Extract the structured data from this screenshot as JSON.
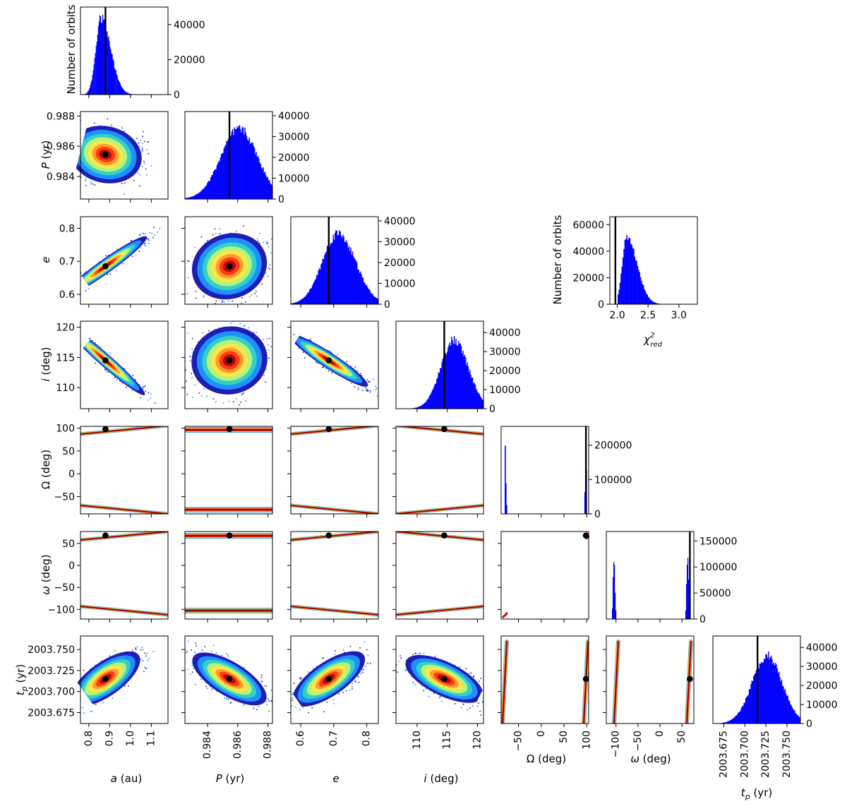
{
  "colors": {
    "hist_fill": "#0000ff",
    "best_fit_line": "#000000",
    "best_fit_point": "#000000",
    "density_colormap": [
      "#1e1eb4",
      "#1e90ff",
      "#33d1c4",
      "#b7f27a",
      "#ffe64a",
      "#ff9b2e",
      "#ff3a12",
      "#b50a0a",
      "#7a0000"
    ]
  },
  "chart_data": {
    "type": "corner",
    "params": [
      {
        "name": "a",
        "label": "a (au)",
        "range": [
          0.76,
          1.18
        ],
        "ticks": [
          "0.8",
          "0.9",
          "1.0",
          "1.1"
        ],
        "tick_values": [
          0.8,
          0.9,
          1.0,
          1.1
        ],
        "best": 0.88,
        "hist_ylim": [
          0,
          50000
        ],
        "hist_ticks": [
          "0",
          "20000",
          "40000"
        ],
        "hist_tick_values": [
          0,
          20000,
          40000
        ],
        "hist_ylabel": "Number of orbits"
      },
      {
        "name": "P",
        "label": "P (yr)",
        "range": [
          0.9825,
          0.9883
        ],
        "ticks": [
          "0.984",
          "0.986",
          "0.988"
        ],
        "tick_values": [
          0.984,
          0.986,
          0.988
        ],
        "best": 0.98545,
        "hist_ylim": [
          0,
          42000
        ],
        "hist_ticks": [
          "0",
          "10000",
          "20000",
          "30000",
          "40000"
        ],
        "hist_tick_values": [
          0,
          10000,
          20000,
          30000,
          40000
        ]
      },
      {
        "name": "e",
        "label": "e",
        "range": [
          0.57,
          0.835
        ],
        "ticks": [
          "0.6",
          "0.7",
          "0.8"
        ],
        "tick_values": [
          0.6,
          0.7,
          0.8
        ],
        "best": 0.685,
        "hist_ylim": [
          0,
          42000
        ],
        "hist_ticks": [
          "0",
          "10000",
          "20000",
          "30000",
          "40000"
        ],
        "hist_tick_values": [
          0,
          10000,
          20000,
          30000,
          40000
        ]
      },
      {
        "name": "i",
        "label": "i (deg)",
        "range": [
          106.5,
          121
        ],
        "ticks": [
          "110",
          "115",
          "120"
        ],
        "tick_values": [
          110,
          115,
          120
        ],
        "best": 114.5,
        "hist_ylim": [
          0,
          46000
        ],
        "hist_ticks": [
          "0",
          "10000",
          "20000",
          "30000",
          "40000"
        ],
        "hist_tick_values": [
          0,
          10000,
          20000,
          30000,
          40000
        ]
      },
      {
        "name": "Omega",
        "label": "Ω (deg)",
        "range": [
          -88,
          104
        ],
        "ticks": [
          "−50",
          "0",
          "50",
          "100"
        ],
        "tick_values": [
          -50,
          0,
          50,
          100
        ],
        "best": 98,
        "hist_ylim": [
          0,
          255000
        ],
        "hist_ticks": [
          "0",
          "100000",
          "200000"
        ],
        "hist_tick_values": [
          0,
          100000,
          200000
        ]
      },
      {
        "name": "omega",
        "label": "ω (deg)",
        "range": [
          -122,
          77
        ],
        "ticks": [
          "−100",
          "−50",
          "0",
          "50"
        ],
        "tick_values": [
          -100,
          -50,
          0,
          50
        ],
        "best": 68,
        "hist_ylim": [
          0,
          168000
        ],
        "hist_ticks": [
          "0",
          "50000",
          "100000",
          "150000"
        ],
        "hist_tick_values": [
          0,
          50000,
          100000,
          150000
        ]
      },
      {
        "name": "tp",
        "label": "tp (yr)",
        "range": [
          2003.662,
          2003.766
        ],
        "ticks": [
          "2003.675",
          "2003.700",
          "2003.725",
          "2003.750"
        ],
        "tick_values": [
          2003.675,
          2003.7,
          2003.725,
          2003.75
        ],
        "best": 2003.715,
        "hist_ylim": [
          0,
          46000
        ],
        "hist_ticks": [
          "0",
          "10000",
          "20000",
          "30000",
          "40000"
        ],
        "hist_tick_values": [
          0,
          10000,
          20000,
          30000,
          40000
        ]
      }
    ],
    "chi2": {
      "xlabel": "χ²red",
      "ylabel": "Number of orbits",
      "xlim": [
        1.88,
        3.3
      ],
      "xticks": [
        "2.0",
        "2.5",
        "3.0"
      ],
      "xtick_values": [
        2.0,
        2.5,
        3.0
      ],
      "ylim": [
        0,
        66000
      ],
      "yticks": [
        "0",
        "20000",
        "40000",
        "60000"
      ],
      "ytick_values": [
        0,
        20000,
        40000,
        60000
      ],
      "best": 1.97,
      "mode": 2.15,
      "peak": 51000
    }
  },
  "axis_labels": {
    "P": "P",
    "e": "e",
    "i": "i",
    "omega": "ω",
    "tp": "t",
    "tp_sub": "p",
    "unit_yr": "(yr)",
    "unit_deg": "(deg)",
    "unit_au": "(au)",
    "a": "a",
    "Omega": "Ω",
    "Omega_ylabel": "Ω (deg)",
    "chi": "χ",
    "chi_sup": "2",
    "chi_sub": "red",
    "hist_ylabel": "Number of orbits"
  }
}
